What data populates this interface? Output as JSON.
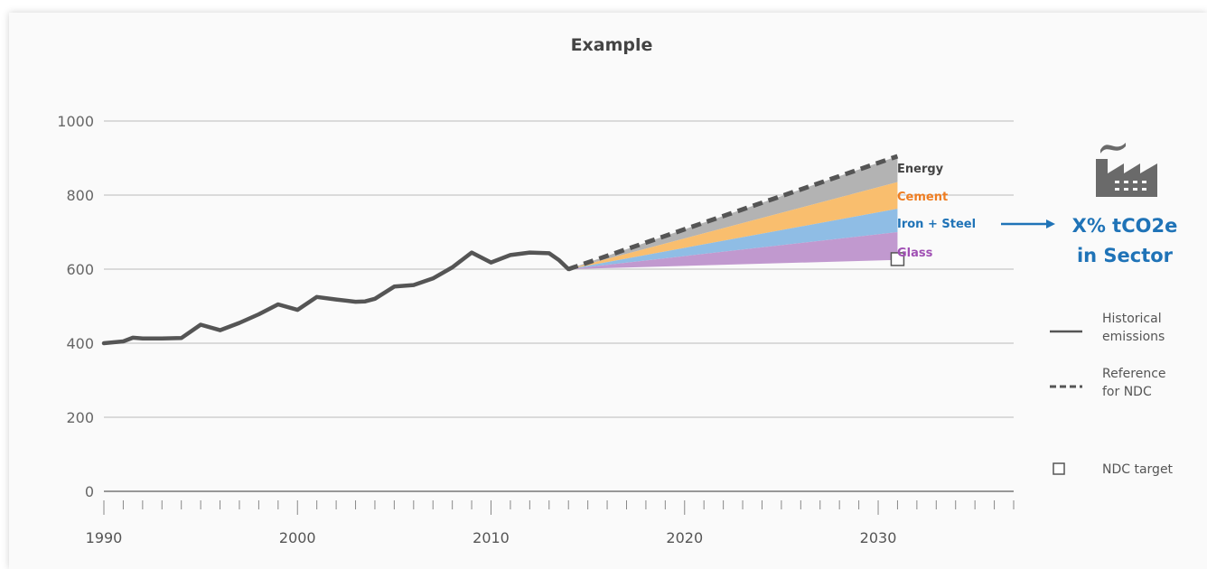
{
  "chart_data": {
    "type": "area",
    "title": "Example",
    "xlabel": "",
    "ylabel": "",
    "xlim": [
      1990,
      2037
    ],
    "ylim": [
      0,
      1000
    ],
    "y_ticks": [
      0,
      200,
      400,
      600,
      800,
      1000
    ],
    "x_ticks": [
      1990,
      2000,
      2010,
      2020,
      2030
    ],
    "grid": true,
    "series": [
      {
        "type": "line",
        "style": "solid",
        "color": "#555555",
        "points": [
          [
            1990,
            400
          ],
          [
            1991,
            405
          ],
          [
            1991.5,
            415
          ],
          [
            1992,
            413
          ],
          [
            1993,
            413
          ],
          [
            1994,
            414
          ],
          [
            1995,
            450
          ],
          [
            1996,
            435
          ],
          [
            1997,
            455
          ],
          [
            1998,
            478
          ],
          [
            1999,
            505
          ],
          [
            2000,
            490
          ],
          [
            2001,
            525
          ],
          [
            2002,
            518
          ],
          [
            2003,
            512
          ],
          [
            2003.5,
            513
          ],
          [
            2004,
            520
          ],
          [
            2005,
            553
          ],
          [
            2006,
            557
          ],
          [
            2007,
            575
          ],
          [
            2008,
            605
          ],
          [
            2009,
            645
          ],
          [
            2010,
            618
          ],
          [
            2011,
            638
          ],
          [
            2012,
            645
          ],
          [
            2013,
            643
          ],
          [
            2013.5,
            625
          ],
          [
            2014,
            600
          ]
        ]
      },
      {
        "type": "line",
        "style": "dashed",
        "color": "#555555",
        "points": [
          [
            2014,
            600
          ],
          [
            2031,
            905
          ]
        ]
      },
      {
        "type": "band",
        "label": "Energy",
        "color": "#b3b3b3",
        "label_color": "#444444",
        "start": [
          2014,
          600
        ],
        "end_low": 835,
        "end_high": 905
      },
      {
        "type": "band",
        "label": "Cement",
        "color": "#f9be6e",
        "label_color": "#ee7d22",
        "start": [
          2014,
          600
        ],
        "end_low": 763,
        "end_high": 835
      },
      {
        "type": "band",
        "label": "Iron + Steel",
        "color": "#8fbde5",
        "label_color": "#1f73b7",
        "start": [
          2014,
          600
        ],
        "end_low": 700,
        "end_high": 763
      },
      {
        "type": "band",
        "label": "Glass",
        "color": "#c199cf",
        "label_color": "#a050b4",
        "start": [
          2014,
          600
        ],
        "end_low": 625,
        "end_high": 700
      }
    ],
    "ndc_target": [
      2031,
      627
    ],
    "callout": {
      "line1": "X% tCO2e",
      "line2": "in Sector",
      "color": "#1f73b7"
    },
    "legend": {
      "position": "right",
      "items": [
        {
          "kind": "solid-line",
          "line1": "Historical",
          "line2": "emissions"
        },
        {
          "kind": "dashed-line",
          "line1": "Reference",
          "line2": "for NDC"
        },
        {
          "kind": "square",
          "line1": "NDC target",
          "line2": ""
        }
      ]
    },
    "icon": "factory-icon"
  }
}
